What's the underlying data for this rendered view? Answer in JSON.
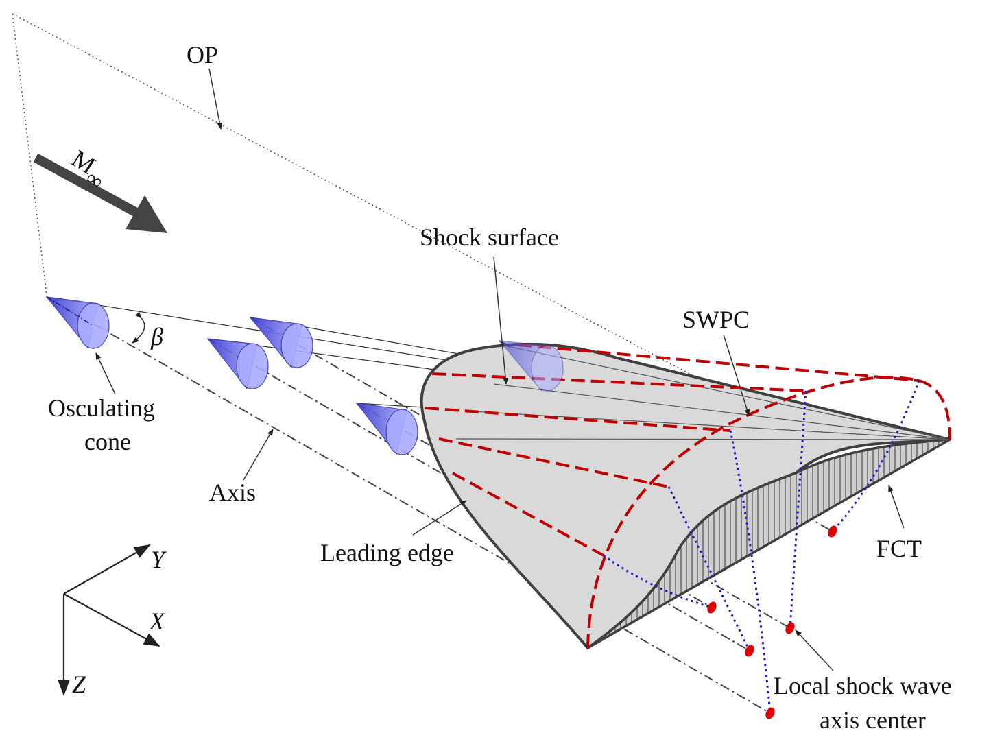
{
  "labels": {
    "op": "OP",
    "mach_main": "M",
    "mach_sub": "∞",
    "shock_surface": "Shock surface",
    "swpc": "SWPC",
    "beta": "β",
    "osculating_line1": "Osculating",
    "osculating_line2": "cone",
    "axis": "Axis",
    "leading_edge": "Leading edge",
    "fct": "FCT",
    "local_line1": "Local shock wave",
    "local_line2": "axis center",
    "y_axis": "Y",
    "x_axis": "X",
    "z_axis": "Z"
  },
  "colors": {
    "cone_fill": "#7b7cf0",
    "cone_stroke": "#3b3bb0",
    "shock_red": "#c00000",
    "blue_dotted": "#1a1acc",
    "body_fill": "#d9d9d9",
    "outline": "#404040"
  }
}
